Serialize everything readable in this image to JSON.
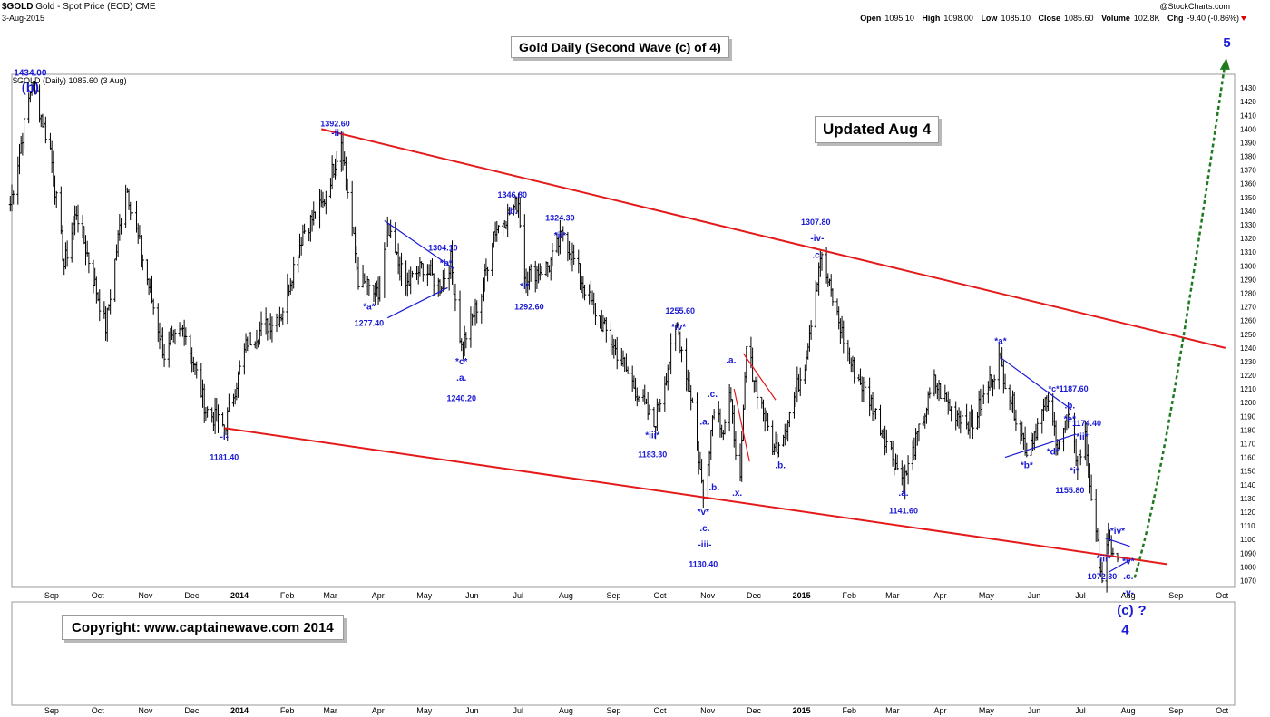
{
  "header": {
    "symbol": "$GOLD",
    "description": "Gold - Spot Price (EOD)",
    "exchange": "CME",
    "date": "3-Aug-2015",
    "watermark": "@StockCharts.com",
    "series_label": "$GOLD (Daily) 1085.60 (3 Aug)",
    "ohlc": {
      "open_label": "Open",
      "open": "1095.10",
      "high_label": "High",
      "high": "1098.00",
      "low_label": "Low",
      "low": "1085.10",
      "close_label": "Close",
      "close": "1085.60",
      "volume_label": "Volume",
      "volume": "102.8K",
      "chg_label": "Chg",
      "chg": "-9.40 (-0.86%)"
    }
  },
  "title_box": "Gold Daily (Second Wave (c) of 4)",
  "update_box": "Updated Aug 4",
  "copyright_box": "Copyright:   www.captainewave.com 2014",
  "colors": {
    "price": "#000000",
    "annotation": "#1a1ad4",
    "channel": "#e41a1a",
    "projection": "#1f7a1f",
    "grid": "#d9d9d9"
  },
  "chart_data": {
    "type": "ohlc",
    "ylim": [
      1065,
      1440
    ],
    "yticks": [
      1070,
      1080,
      1090,
      1100,
      1110,
      1120,
      1130,
      1140,
      1150,
      1160,
      1170,
      1180,
      1190,
      1200,
      1210,
      1220,
      1230,
      1240,
      1250,
      1260,
      1270,
      1280,
      1290,
      1300,
      1310,
      1320,
      1330,
      1340,
      1350,
      1360,
      1370,
      1380,
      1390,
      1400,
      1410,
      1420,
      1430
    ],
    "x_axis_months": [
      {
        "label": "Sep",
        "date": "2013-09-01"
      },
      {
        "label": "Oct",
        "date": "2013-10-01"
      },
      {
        "label": "Nov",
        "date": "2013-11-01"
      },
      {
        "label": "Dec",
        "date": "2013-12-01"
      },
      {
        "label": "2014",
        "date": "2014-01-01",
        "bold": true
      },
      {
        "label": "Feb",
        "date": "2014-02-01"
      },
      {
        "label": "Mar",
        "date": "2014-03-01"
      },
      {
        "label": "Apr",
        "date": "2014-04-01"
      },
      {
        "label": "May",
        "date": "2014-05-01"
      },
      {
        "label": "Jun",
        "date": "2014-06-01"
      },
      {
        "label": "Jul",
        "date": "2014-07-01"
      },
      {
        "label": "Aug",
        "date": "2014-08-01"
      },
      {
        "label": "Sep",
        "date": "2014-09-01"
      },
      {
        "label": "Oct",
        "date": "2014-10-01"
      },
      {
        "label": "Nov",
        "date": "2014-11-01"
      },
      {
        "label": "Dec",
        "date": "2014-12-01"
      },
      {
        "label": "2015",
        "date": "2015-01-01",
        "bold": true
      },
      {
        "label": "Feb",
        "date": "2015-02-01"
      },
      {
        "label": "Mar",
        "date": "2015-03-01"
      },
      {
        "label": "Apr",
        "date": "2015-04-01"
      },
      {
        "label": "May",
        "date": "2015-05-01"
      },
      {
        "label": "Jun",
        "date": "2015-06-01"
      },
      {
        "label": "Jul",
        "date": "2015-07-01"
      },
      {
        "label": "Aug",
        "date": "2015-08-01"
      },
      {
        "label": "Sep",
        "date": "2015-09-01"
      },
      {
        "label": "Oct",
        "date": "2015-10-01"
      }
    ],
    "price_path": [
      [
        "2013-08-14",
        1345
      ],
      [
        "2013-08-28",
        1434
      ],
      [
        "2013-09-09",
        1385
      ],
      [
        "2013-09-18",
        1300
      ],
      [
        "2013-09-26",
        1340
      ],
      [
        "2013-10-15",
        1255
      ],
      [
        "2013-10-28",
        1360
      ],
      [
        "2013-11-07",
        1310
      ],
      [
        "2013-11-22",
        1235
      ],
      [
        "2013-12-05",
        1255
      ],
      [
        "2013-12-19",
        1195
      ],
      [
        "2013-12-31",
        1181.4
      ],
      [
        "2014-01-15",
        1245
      ],
      [
        "2014-02-06",
        1265
      ],
      [
        "2014-02-20",
        1325
      ],
      [
        "2014-03-05",
        1345
      ],
      [
        "2014-03-17",
        1392.6
      ],
      [
        "2014-03-28",
        1290
      ],
      [
        "2014-04-10",
        1277.4
      ],
      [
        "2014-04-16",
        1325
      ],
      [
        "2014-04-28",
        1285
      ],
      [
        "2014-05-09",
        1300
      ],
      [
        "2014-05-20",
        1285
      ],
      [
        "2014-05-27",
        1304.1
      ],
      [
        "2014-06-03",
        1240.2
      ],
      [
        "2014-06-16",
        1280
      ],
      [
        "2014-06-24",
        1325
      ],
      [
        "2014-07-10",
        1346.8
      ],
      [
        "2014-07-14",
        1292.6
      ],
      [
        "2014-07-30",
        1300
      ],
      [
        "2014-08-08",
        1324.3
      ],
      [
        "2014-08-25",
        1275
      ],
      [
        "2014-09-15",
        1230
      ],
      [
        "2014-10-06",
        1183.3
      ],
      [
        "2014-10-21",
        1255.6
      ],
      [
        "2014-10-31",
        1200
      ],
      [
        "2014-11-07",
        1130.4
      ],
      [
        "2014-11-14",
        1200
      ],
      [
        "2014-11-20",
        1180
      ],
      [
        "2014-11-24",
        1205
      ],
      [
        "2014-12-01",
        1141
      ],
      [
        "2014-12-05",
        1240
      ],
      [
        "2014-12-12",
        1210
      ],
      [
        "2014-12-23",
        1165
      ],
      [
        "2014-12-31",
        1185
      ],
      [
        "2015-01-12",
        1230
      ],
      [
        "2015-01-22",
        1307.8
      ],
      [
        "2015-01-29",
        1280
      ],
      [
        "2015-02-10",
        1230
      ],
      [
        "2015-02-24",
        1200
      ],
      [
        "2015-03-17",
        1141.6
      ],
      [
        "2015-04-06",
        1215
      ],
      [
        "2015-04-17",
        1195
      ],
      [
        "2015-05-01",
        1185
      ],
      [
        "2015-05-18",
        1232
      ],
      [
        "2015-06-05",
        1165
      ],
      [
        "2015-06-18",
        1200
      ],
      [
        "2015-06-25",
        1172
      ],
      [
        "2015-07-02",
        1187.6
      ],
      [
        "2015-07-08",
        1155.8
      ],
      [
        "2015-07-13",
        1174.4
      ],
      [
        "2015-07-20",
        1100
      ],
      [
        "2015-07-24",
        1072.3
      ],
      [
        "2015-07-28",
        1098
      ],
      [
        "2015-08-03",
        1085.6
      ]
    ],
    "channel_lines": [
      {
        "from": [
          "2014-03-04",
          1400
        ],
        "to": [
          "2015-10-12",
          1240
        ]
      },
      {
        "from": [
          "2013-12-31",
          1181.4
        ],
        "to": [
          "2015-09-04",
          1082
        ]
      }
    ],
    "annotation_lines": [
      {
        "color": "blue",
        "from": [
          "2014-04-14",
          1333
        ],
        "to": [
          "2014-05-29",
          1298
        ]
      },
      {
        "color": "blue",
        "from": [
          "2014-04-16",
          1262
        ],
        "to": [
          "2014-05-25",
          1284
        ]
      },
      {
        "color": "red",
        "from": [
          "2014-11-27",
          1210
        ],
        "to": [
          "2014-12-07",
          1157
        ]
      },
      {
        "color": "red",
        "from": [
          "2014-12-03",
          1236
        ],
        "to": [
          "2014-12-24",
          1202
        ]
      },
      {
        "color": "blue",
        "from": [
          "2015-05-19",
          1233
        ],
        "to": [
          "2015-07-04",
          1195
        ]
      },
      {
        "color": "blue",
        "from": [
          "2015-05-22",
          1160
        ],
        "to": [
          "2015-07-07",
          1177
        ]
      },
      {
        "color": "blue",
        "from": [
          "2015-07-26",
          1101
        ],
        "to": [
          "2015-08-11",
          1095
        ]
      },
      {
        "color": "blue",
        "from": [
          "2015-07-28",
          1076
        ],
        "to": [
          "2015-08-11",
          1085
        ]
      }
    ],
    "projection": {
      "style": "dashed-arrow",
      "points": [
        [
          "2015-08-14",
          1072
        ],
        [
          "2015-09-01",
          1140
        ],
        [
          "2015-09-20",
          1280
        ],
        [
          "2015-10-12",
          1450
        ]
      ]
    },
    "labels": [
      {
        "text": "1434.00",
        "date": "2013-08-27",
        "price": 1439,
        "bold": true
      },
      {
        "text": "(b)",
        "date": "2013-08-27",
        "price": 1427,
        "bold": true,
        "large": true
      },
      {
        "text": "1392.60",
        "date": "2014-03-13",
        "price": 1402,
        "bold": true,
        "small": true
      },
      {
        "text": "-ii-",
        "date": "2014-03-14",
        "price": 1395
      },
      {
        "text": "1346.80",
        "date": "2014-07-06",
        "price": 1350,
        "small": true
      },
      {
        "text": ".b.",
        "date": "2014-07-06",
        "price": 1338
      },
      {
        "text": "1324.30",
        "date": "2014-08-06",
        "price": 1333,
        "small": true
      },
      {
        "text": "*ii*",
        "date": "2014-08-06",
        "price": 1320
      },
      {
        "text": "1304.10",
        "date": "2014-05-22",
        "price": 1311,
        "small": true
      },
      {
        "text": "*b*",
        "date": "2014-05-24",
        "price": 1300
      },
      {
        "text": "*a*",
        "date": "2014-04-04",
        "price": 1268
      },
      {
        "text": "1277.40",
        "date": "2014-04-04",
        "price": 1256,
        "small": true
      },
      {
        "text": "*i*",
        "date": "2014-07-14",
        "price": 1283
      },
      {
        "text": "1292.60",
        "date": "2014-07-17",
        "price": 1268,
        "small": true
      },
      {
        "text": "*c*",
        "date": "2014-06-03",
        "price": 1228
      },
      {
        "text": ".a.",
        "date": "2014-06-03",
        "price": 1216
      },
      {
        "text": "1240.20",
        "date": "2014-06-03",
        "price": 1201,
        "small": true
      },
      {
        "text": "-i-",
        "date": "2013-12-31",
        "price": 1173
      },
      {
        "text": "1181.40",
        "date": "2013-12-31",
        "price": 1158,
        "small": true
      },
      {
        "text": "1255.60",
        "date": "2014-10-23",
        "price": 1265,
        "small": true
      },
      {
        "text": "*iv*",
        "date": "2014-10-22",
        "price": 1253
      },
      {
        "text": "*iii*",
        "date": "2014-10-05",
        "price": 1174
      },
      {
        "text": "1183.30",
        "date": "2014-10-05",
        "price": 1160,
        "small": true
      },
      {
        "text": ".a.",
        "date": "2014-11-25",
        "price": 1229
      },
      {
        "text": ".c.",
        "date": "2014-11-13",
        "price": 1204
      },
      {
        "text": ".a.",
        "date": "2014-11-08",
        "price": 1184
      },
      {
        "text": ".b.",
        "date": "2014-11-14",
        "price": 1136
      },
      {
        "text": ".x.",
        "date": "2014-11-29",
        "price": 1132
      },
      {
        "text": "*v*",
        "date": "2014-11-07",
        "price": 1118
      },
      {
        "text": ".c.",
        "date": "2014-11-08",
        "price": 1106
      },
      {
        "text": "-iii-",
        "date": "2014-11-08",
        "price": 1094
      },
      {
        "text": "1130.40",
        "date": "2014-11-07",
        "price": 1080,
        "small": true
      },
      {
        "text": ".b.",
        "date": "2014-12-27",
        "price": 1152
      },
      {
        "text": "1307.80",
        "date": "2015-01-19",
        "price": 1330,
        "small": true
      },
      {
        "text": "-iv-",
        "date": "2015-01-20",
        "price": 1318
      },
      {
        "text": ".c.",
        "date": "2015-01-20",
        "price": 1306
      },
      {
        "text": ".a.",
        "date": "2015-03-17",
        "price": 1132
      },
      {
        "text": "1141.60",
        "date": "2015-03-17",
        "price": 1119,
        "small": true
      },
      {
        "text": "*a*",
        "date": "2015-05-19",
        "price": 1243
      },
      {
        "text": "*c*1187.60",
        "date": "2015-07-02",
        "price": 1208,
        "small": true
      },
      {
        "text": ".b.",
        "date": "2015-07-03",
        "price": 1196
      },
      {
        "text": "*e*",
        "date": "2015-07-03",
        "price": 1186
      },
      {
        "text": "1174.40",
        "date": "2015-07-14",
        "price": 1183,
        "small": true
      },
      {
        "text": "*ii*",
        "date": "2015-07-11",
        "price": 1173
      },
      {
        "text": "*d*",
        "date": "2015-06-22",
        "price": 1162
      },
      {
        "text": "*b*",
        "date": "2015-06-05",
        "price": 1152
      },
      {
        "text": "*i*",
        "date": "2015-07-06",
        "price": 1148
      },
      {
        "text": "1155.80",
        "date": "2015-07-03",
        "price": 1134,
        "small": true
      },
      {
        "text": "*iv*",
        "date": "2015-08-03",
        "price": 1104
      },
      {
        "text": "*iii*",
        "date": "2015-07-25",
        "price": 1084
      },
      {
        "text": "1072.30",
        "date": "2015-07-24",
        "price": 1071,
        "small": true
      },
      {
        "text": "*v*",
        "date": "2015-08-10",
        "price": 1082
      },
      {
        "text": ".c.",
        "date": "2015-08-10",
        "price": 1071
      },
      {
        "text": "-v-",
        "date": "2015-08-10",
        "price": 1059
      },
      {
        "text": "(c)",
        "date": "2015-08-08",
        "price": 1045,
        "large": true
      },
      {
        "text": "?",
        "date": "2015-08-19",
        "price": 1045,
        "large": true
      },
      {
        "text": "4",
        "date": "2015-08-08",
        "price": 1031,
        "large": true
      },
      {
        "text": "5",
        "date": "2015-10-13",
        "price": 1460,
        "large": true
      }
    ]
  }
}
